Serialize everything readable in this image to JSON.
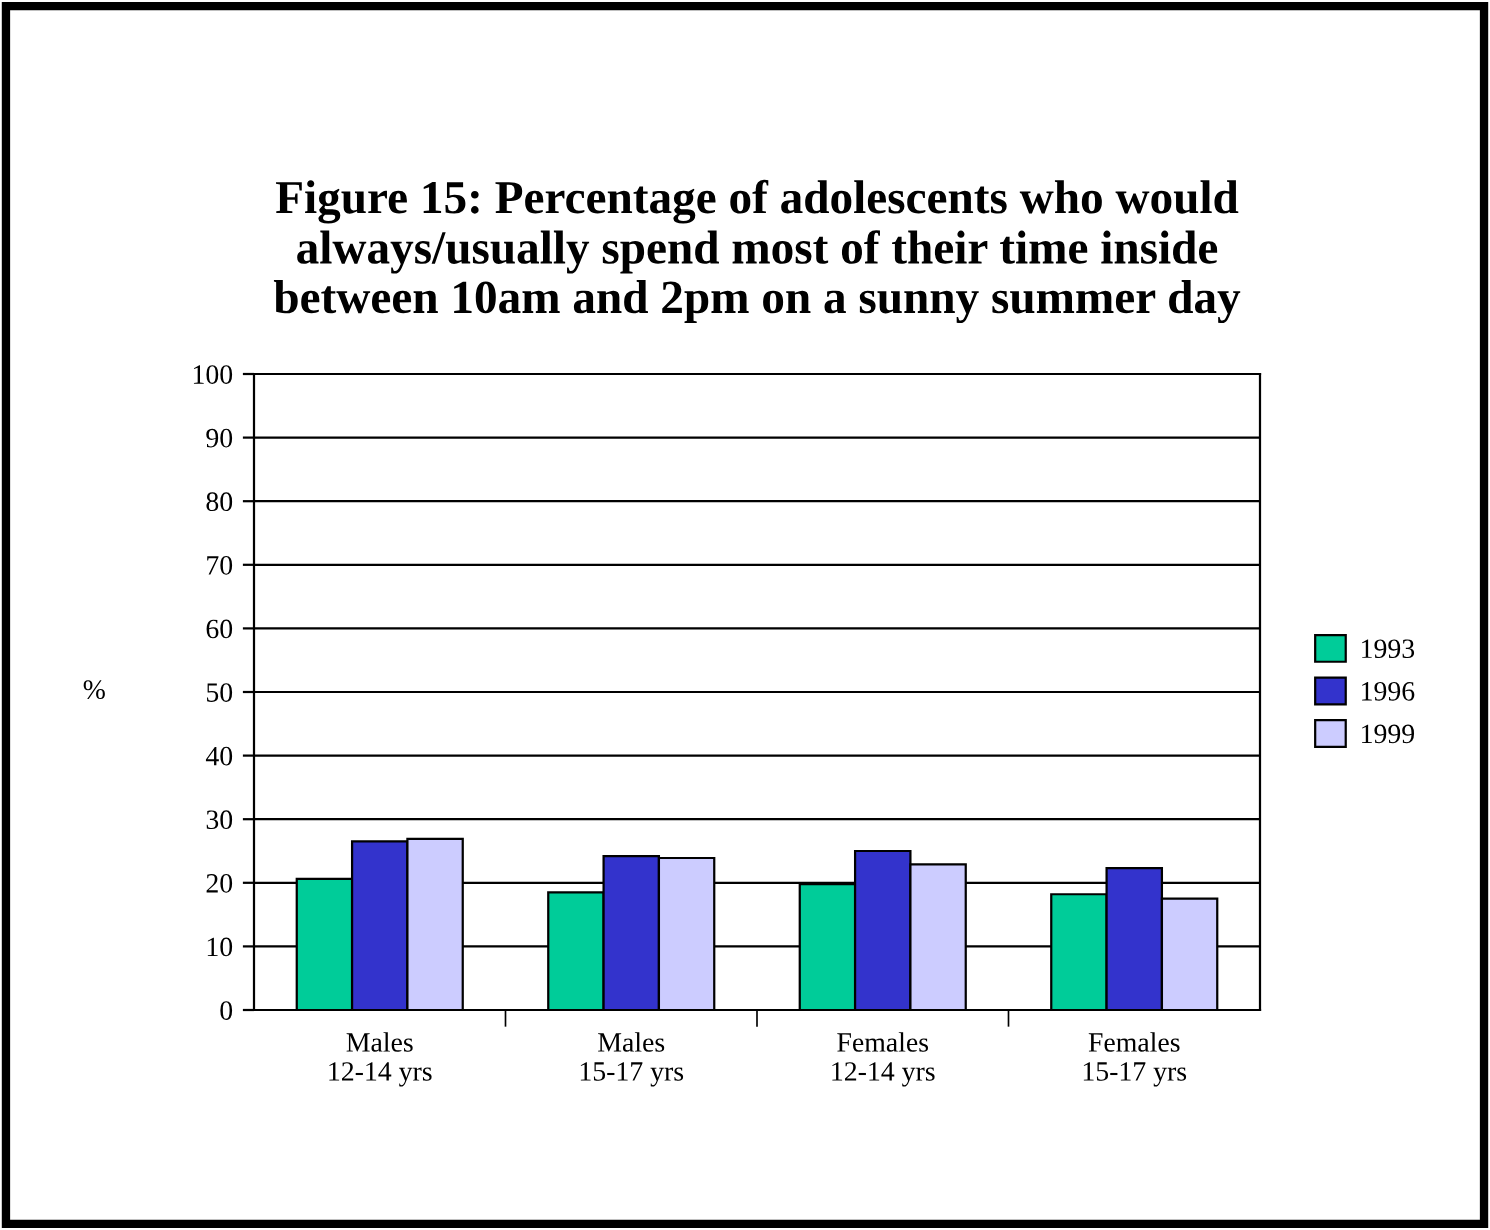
{
  "chart_data": {
    "type": "bar",
    "title": "Figure 15: Percentage of adolescents who would\nalways/usually spend most of their time inside\nbetween 10am and 2pm on a sunny summer day",
    "ylabel": "%",
    "categories": [
      "Males\n12-14 yrs",
      "Males\n15-17 yrs",
      "Females\n12-14 yrs",
      "Females\n15-17 yrs"
    ],
    "series": [
      {
        "name": "1993",
        "color": "#00cc99",
        "values": [
          20.6,
          18.5,
          19.8,
          18.2
        ]
      },
      {
        "name": "1996",
        "color": "#3333cc",
        "values": [
          26.5,
          24.2,
          25.0,
          22.3
        ]
      },
      {
        "name": "1999",
        "color": "#ccccff",
        "values": [
          26.9,
          23.9,
          22.9,
          17.5
        ]
      }
    ],
    "ylim": [
      0,
      100
    ],
    "yticks": [
      0,
      10,
      20,
      30,
      40,
      50,
      60,
      70,
      80,
      90,
      100
    ],
    "grid": "y",
    "legend": "right"
  }
}
